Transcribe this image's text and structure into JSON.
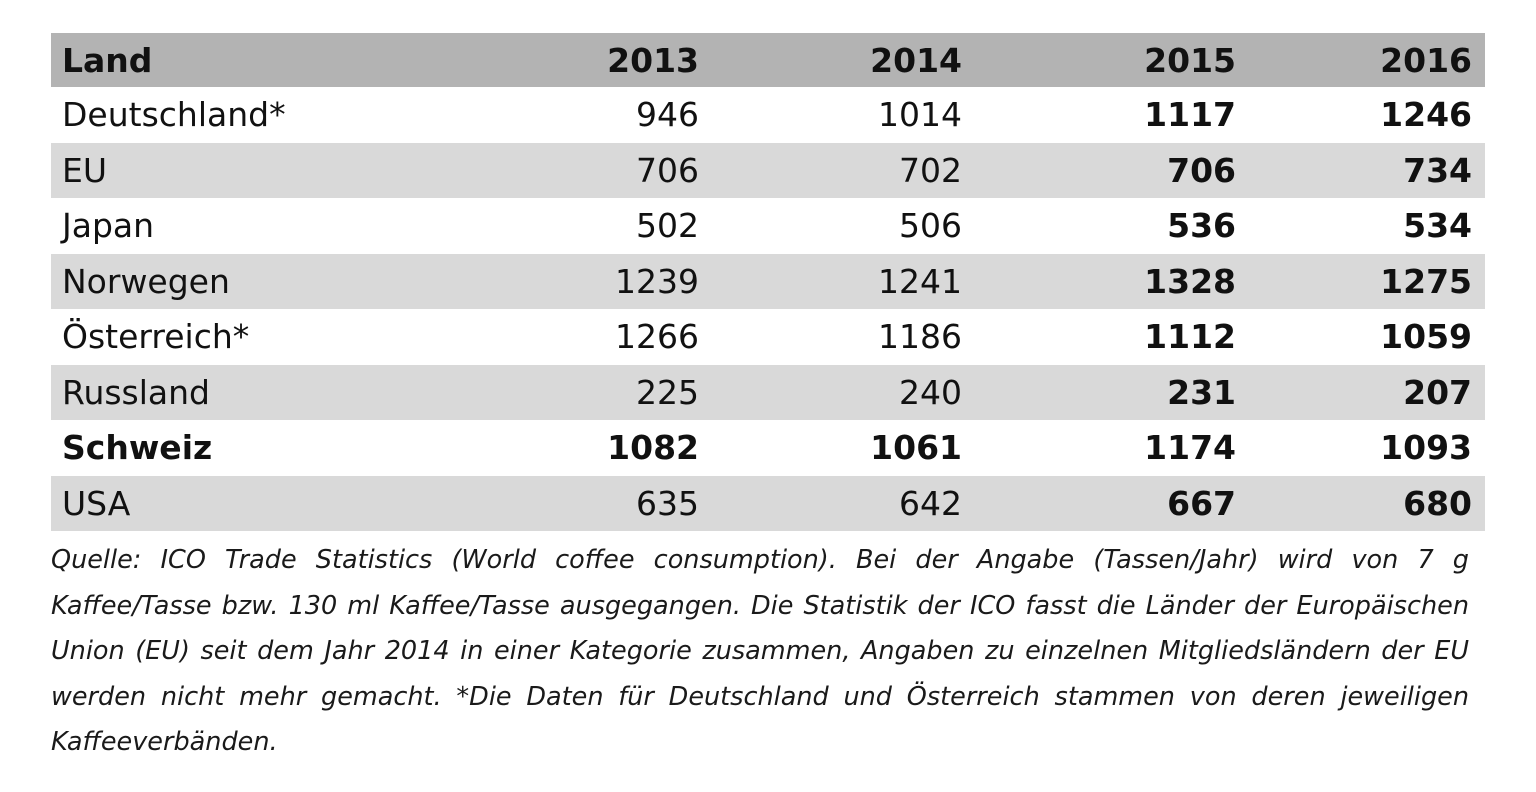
{
  "table": {
    "headers": [
      "Land",
      "2013",
      "2014",
      "2015",
      "2016"
    ],
    "rows": [
      [
        "Deutschland*",
        "946",
        "1014",
        "1117",
        "1246"
      ],
      [
        "EU",
        "706",
        "702",
        "706",
        "734"
      ],
      [
        "Japan",
        "502",
        "506",
        "536",
        "534"
      ],
      [
        "Norwegen",
        "1239",
        "1241",
        "1328",
        "1275"
      ],
      [
        "Österreich*",
        "1266",
        "1186",
        "1112",
        "1059"
      ],
      [
        "Russland",
        "225",
        "240",
        "231",
        "207"
      ],
      [
        "Schweiz",
        "1082",
        "1061",
        "1174",
        "1093"
      ],
      [
        "USA",
        "635",
        "642",
        "667",
        "680"
      ]
    ]
  },
  "footnote": "Quelle: ICO Trade Statistics (World coffee consumption). Bei der Angabe (Tassen/Jahr) wird von 7 g Kaffee/Tasse bzw. 130 ml Kaffee/Tasse ausgegangen. Die Statistik der ICO fasst die Länder der Europäi­schen Union (EU) seit dem Jahr 2014 in einer Kategorie zusammen, Angaben zu einzelnen Mitgliedsländern der EU werden nicht mehr gemacht. *Die Daten für Deutschland und Österreich stammen von deren jeweili­gen Kaffeeverbänden."
}
